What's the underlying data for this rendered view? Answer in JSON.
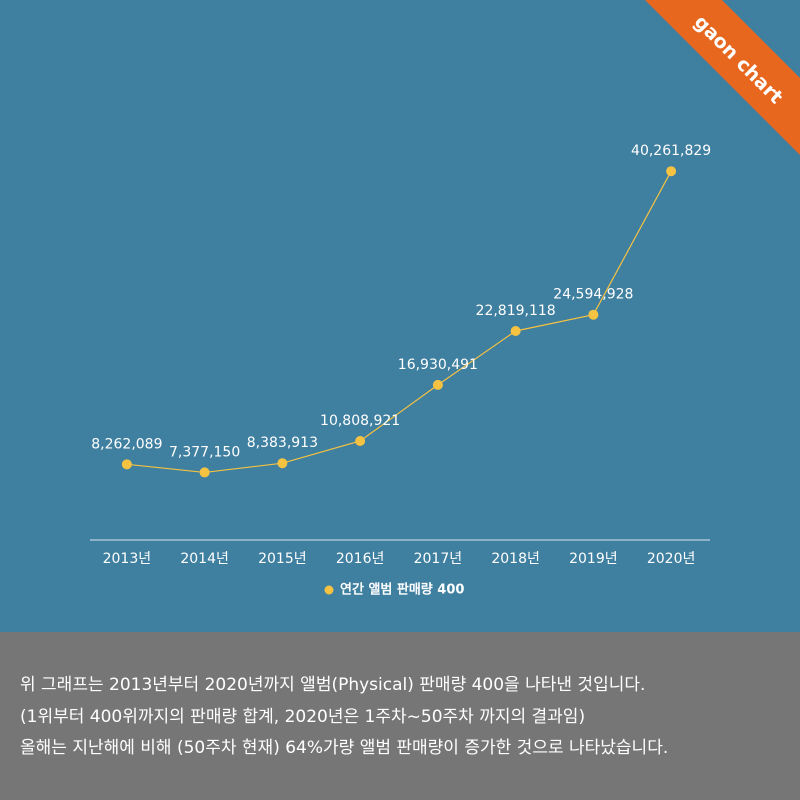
{
  "badge": "gaon chart",
  "chart_data": {
    "type": "line",
    "categories": [
      "2013년",
      "2014년",
      "2015년",
      "2016년",
      "2017년",
      "2018년",
      "2019년",
      "2020년"
    ],
    "series": [
      {
        "name": "연간 앨범 판매량 400",
        "color": "#f5c242",
        "values": [
          8262089,
          7377150,
          8383913,
          10808921,
          16930491,
          22819118,
          24594928,
          40261829
        ],
        "value_labels": [
          "8,262,089",
          "7,377,150",
          "8,383,913",
          "10,808,921",
          "16,930,491",
          "22,819,118",
          "24,594,928",
          "40,261,829"
        ]
      }
    ],
    "ylim": [
      0,
      50000000
    ]
  },
  "caption": [
    "위 그래프는 2013년부터 2020년까지 앨범(Physical) 판매량 400을 나타낸 것입니다.",
    "(1위부터 400위까지의 판매량 합계, 2020년은 1주차~50주차 까지의 결과임)",
    "올해는 지난해에 비해 (50주차 현재) 64%가량  앨범 판매량이 증가한 것으로 나타났습니다."
  ]
}
